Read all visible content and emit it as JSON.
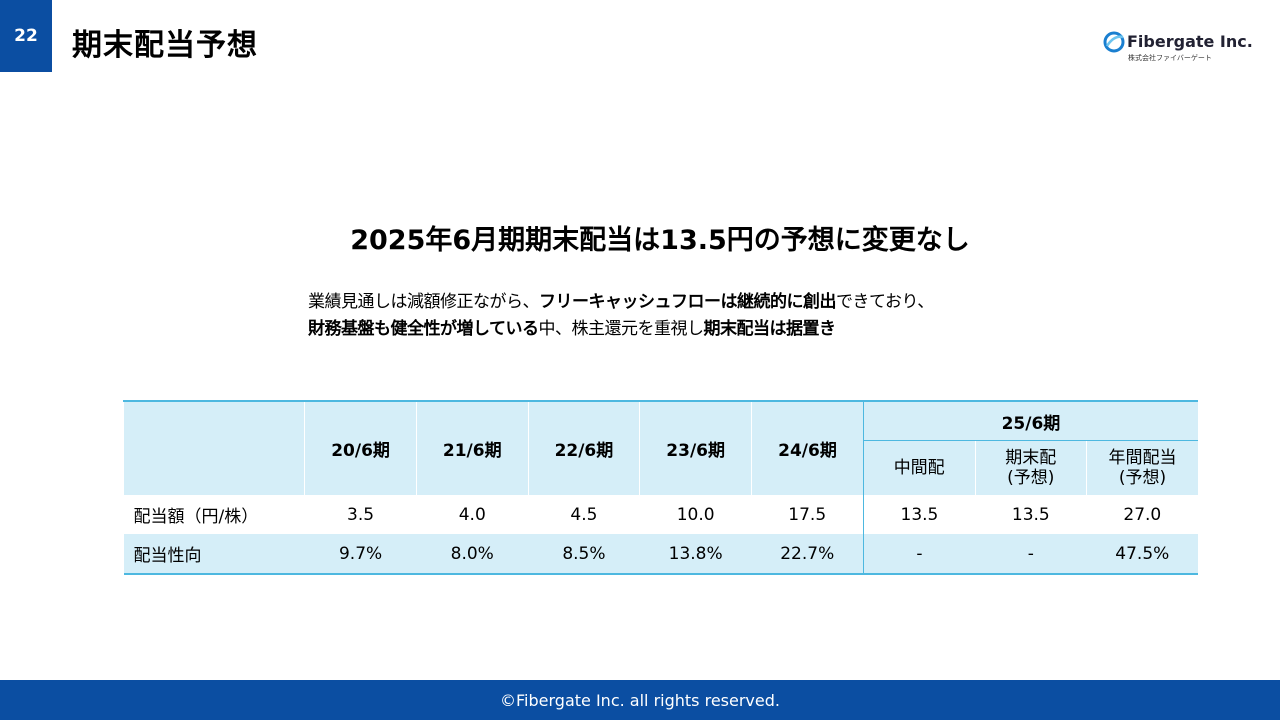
{
  "page_number": "22",
  "title": "期末配当予想",
  "logo": {
    "name": "Fibergate Inc.",
    "subtitle": "株式会社ファイバーゲート"
  },
  "headline": "2025年6月期期末配当は13.5円の予想に変更なし",
  "body": [
    [
      {
        "text": "業績見通しは減額修正ながら、",
        "bold": false
      },
      {
        "text": "フリーキャッシュフローは継続的に創出",
        "bold": true
      },
      {
        "text": "できており、",
        "bold": false
      }
    ],
    [
      {
        "text": "財務基盤も健全性が増している",
        "bold": true
      },
      {
        "text": "中、株主還元を重視し",
        "bold": false
      },
      {
        "text": "期末配当は据置き",
        "bold": true
      }
    ]
  ],
  "table": {
    "group_header": "25/6期",
    "columns": [
      "20/6期",
      "21/6期",
      "22/6期",
      "23/6期",
      "24/6期",
      "中間配",
      "期末配\n(予想)",
      "年間配当\n(予想)"
    ],
    "rows": [
      [
        "配当額（円/株）",
        "3.5",
        "4.0",
        "4.5",
        "10.0",
        "17.5",
        "13.5",
        "13.5",
        "27.0"
      ],
      [
        "配当性向",
        "9.7%",
        "8.0%",
        "8.5%",
        "13.8%",
        "22.7%",
        "-",
        "-",
        "47.5%"
      ]
    ]
  },
  "footer": "©Fibergate Inc. all rights reserved."
}
